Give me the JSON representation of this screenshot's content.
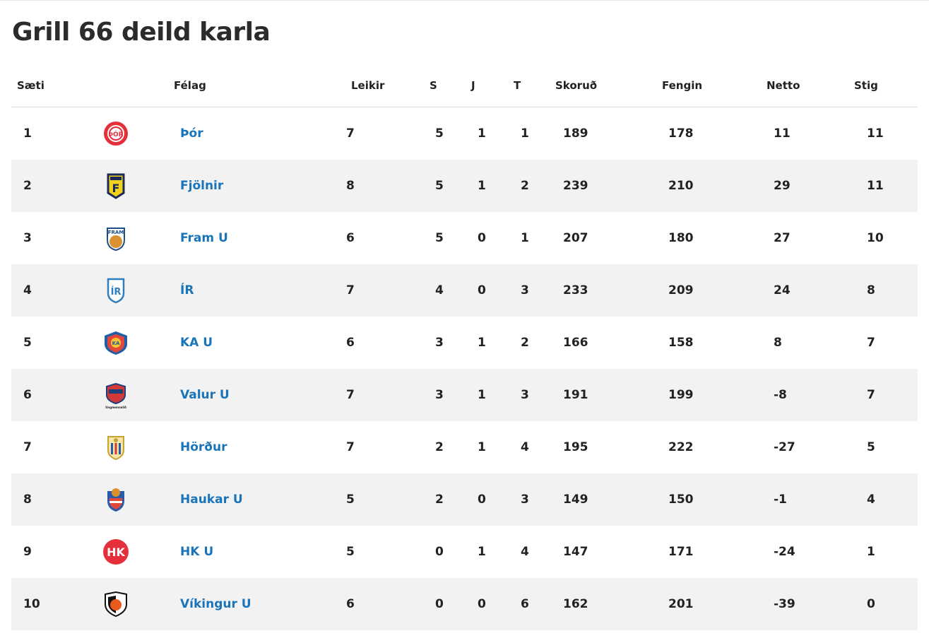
{
  "page": {
    "title": "Grill 66 deild karla"
  },
  "table": {
    "headers": {
      "rank": "Sæti",
      "club": "Félag",
      "played": "Leikir",
      "wins": "S",
      "draws": "J",
      "losses": "T",
      "scored": "Skoruð",
      "conceded": "Fengin",
      "net": "Netto",
      "points": "Stig"
    },
    "rows": [
      {
        "rank": "1",
        "team": "Þór",
        "logo": "thor-crest-icon",
        "played": "7",
        "wins": "5",
        "draws": "1",
        "losses": "1",
        "scored": "189",
        "conceded": "178",
        "net": "11",
        "points": "11"
      },
      {
        "rank": "2",
        "team": "Fjölnir",
        "logo": "fjolnir-crest-icon",
        "played": "8",
        "wins": "5",
        "draws": "1",
        "losses": "2",
        "scored": "239",
        "conceded": "210",
        "net": "29",
        "points": "11"
      },
      {
        "rank": "3",
        "team": "Fram U",
        "logo": "fram-crest-icon",
        "played": "6",
        "wins": "5",
        "draws": "0",
        "losses": "1",
        "scored": "207",
        "conceded": "180",
        "net": "27",
        "points": "10"
      },
      {
        "rank": "4",
        "team": "ÍR",
        "logo": "ir-crest-icon",
        "played": "7",
        "wins": "4",
        "draws": "0",
        "losses": "3",
        "scored": "233",
        "conceded": "209",
        "net": "24",
        "points": "8"
      },
      {
        "rank": "5",
        "team": "KA U",
        "logo": "ka-crest-icon",
        "played": "6",
        "wins": "3",
        "draws": "1",
        "losses": "2",
        "scored": "166",
        "conceded": "158",
        "net": "8",
        "points": "7"
      },
      {
        "rank": "6",
        "team": "Valur U",
        "logo": "valur-crest-icon",
        "played": "7",
        "wins": "3",
        "draws": "1",
        "losses": "3",
        "scored": "191",
        "conceded": "199",
        "net": "-8",
        "points": "7"
      },
      {
        "rank": "7",
        "team": "Hörður",
        "logo": "hordur-crest-icon",
        "played": "7",
        "wins": "2",
        "draws": "1",
        "losses": "4",
        "scored": "195",
        "conceded": "222",
        "net": "-27",
        "points": "5"
      },
      {
        "rank": "8",
        "team": "Haukar U",
        "logo": "haukar-crest-icon",
        "played": "5",
        "wins": "2",
        "draws": "0",
        "losses": "3",
        "scored": "149",
        "conceded": "150",
        "net": "-1",
        "points": "4"
      },
      {
        "rank": "9",
        "team": "HK U",
        "logo": "hk-crest-icon",
        "played": "5",
        "wins": "0",
        "draws": "1",
        "losses": "4",
        "scored": "147",
        "conceded": "171",
        "net": "-24",
        "points": "1"
      },
      {
        "rank": "10",
        "team": "Víkingur U",
        "logo": "vikingur-crest-icon",
        "played": "6",
        "wins": "0",
        "draws": "0",
        "losses": "6",
        "scored": "162",
        "conceded": "201",
        "net": "-39",
        "points": "0"
      }
    ]
  },
  "colors": {
    "link": "#1a74b9",
    "row_alt": "#f2f2f2",
    "text": "#222222"
  }
}
